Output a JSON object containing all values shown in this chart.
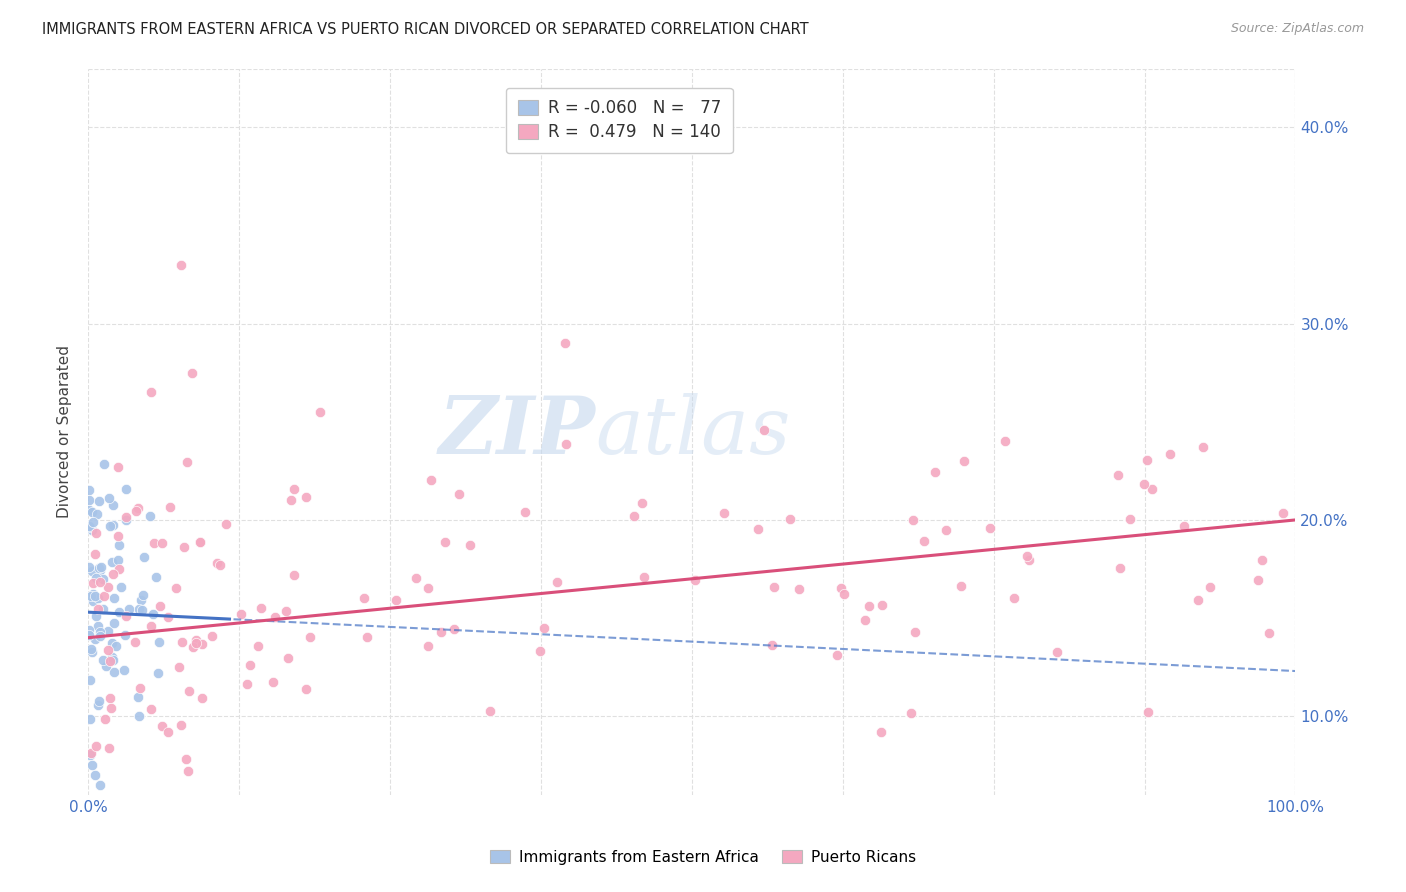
{
  "title": "IMMIGRANTS FROM EASTERN AFRICA VS PUERTO RICAN DIVORCED OR SEPARATED CORRELATION CHART",
  "source": "Source: ZipAtlas.com",
  "ylabel": "Divorced or Separated",
  "xlim": [
    0.0,
    1.0
  ],
  "ylim": [
    0.06,
    0.43
  ],
  "xtick_positions": [
    0.0,
    1.0
  ],
  "xtick_labels": [
    "0.0%",
    "100.0%"
  ],
  "ytick_values": [
    0.1,
    0.2,
    0.3,
    0.4
  ],
  "ytick_labels": [
    "10.0%",
    "20.0%",
    "30.0%",
    "40.0%"
  ],
  "blue_color": "#a8c4e8",
  "pink_color": "#f4a8c0",
  "blue_line_color": "#4472c4",
  "pink_line_color": "#d94f7a",
  "R_blue": -0.06,
  "N_blue": 77,
  "R_pink": 0.479,
  "N_pink": 140,
  "watermark_zip": "ZIP",
  "watermark_atlas": "atlas",
  "legend_label_blue": "Immigrants from Eastern Africa",
  "legend_label_pink": "Puerto Ricans",
  "background_color": "#ffffff",
  "grid_color": "#e0e0e0",
  "title_fontsize": 10.5,
  "source_fontsize": 9,
  "ylabel_fontsize": 11,
  "tick_fontsize": 11,
  "legend_fontsize": 12
}
